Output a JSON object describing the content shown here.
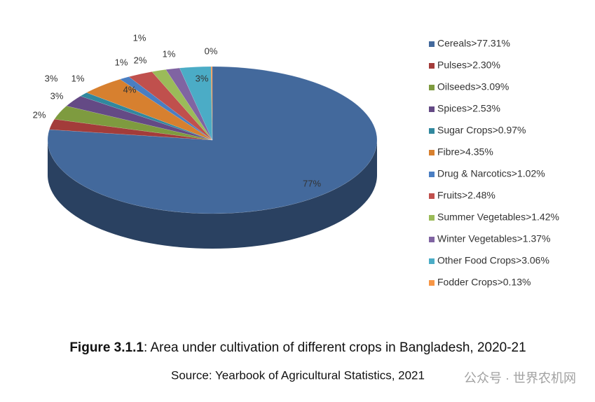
{
  "chart_data": {
    "type": "pie",
    "categories": [
      "Cereals>77.31%",
      "Pulses>2.30%",
      "Oilseeds>3.09%",
      "Spices>2.53%",
      "Sugar Crops>0.97%",
      "Fibre>4.35%",
      "Drug & Narcotics>1.02%",
      "Fruits>2.48%",
      "Summer Vegetables>1.42%",
      "Winter Vegetables>1.37%",
      "Other Food Crops>3.06%",
      "Fodder Crops>0.13%"
    ],
    "values": [
      77.31,
      2.3,
      3.09,
      2.53,
      0.97,
      4.35,
      1.02,
      2.48,
      1.42,
      1.37,
      3.06,
      0.13
    ],
    "value_labels": [
      "77%",
      "2%",
      "3%",
      "3%",
      "1%",
      "4%",
      "1%",
      "2%",
      "1%",
      "1%",
      "3%",
      "0%"
    ],
    "colors": [
      "#43699c",
      "#a33c3a",
      "#7e9b3f",
      "#644a85",
      "#31889e",
      "#d7802f",
      "#4a7ec2",
      "#c0504d",
      "#9bbb59",
      "#8064a2",
      "#4bacc6",
      "#f79646"
    ],
    "legend": "right",
    "caption": {
      "figure_label": "Figure 3.1.1",
      "text": ": Area under cultivation of different crops in Bangladesh, 2020-21"
    },
    "source": "Source: Yearbook of Agricultural Statistics, 2021",
    "watermark": "公众号 · 世界农机网"
  }
}
